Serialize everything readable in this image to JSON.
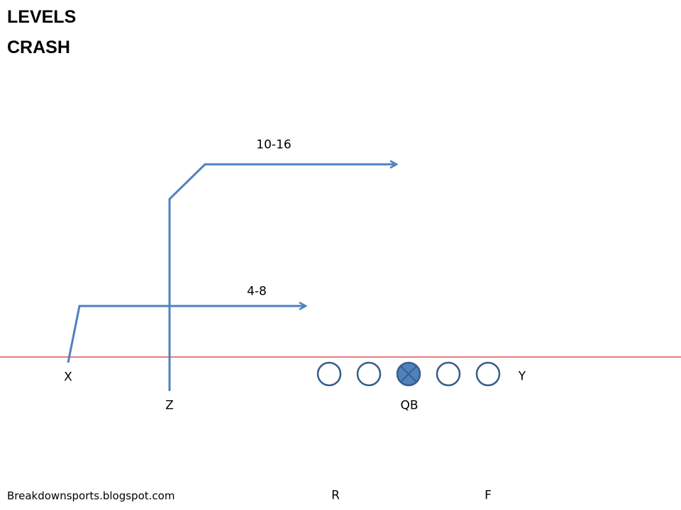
{
  "title": {
    "line1": "LEVELS",
    "line2": "CRASH"
  },
  "players": {
    "x": "X",
    "z": "Z",
    "y": "Y",
    "qb": "QB",
    "r": "R",
    "f": "F"
  },
  "routes": {
    "deep_depth": "10-16",
    "short_depth": "4-8"
  },
  "credit": "Breakdownsports.blogspot.com",
  "colors": {
    "route": "#4f81bd",
    "route_stroke": "#3b6aa0",
    "line_of_scrimmage": "#c00000",
    "qb_fill": "#4f81bd",
    "lineman_stroke": "#385d8a"
  },
  "icons": {
    "qb": "circle-with-x-icon",
    "lineman": "circle-icon",
    "route_end": "arrowhead-icon"
  }
}
